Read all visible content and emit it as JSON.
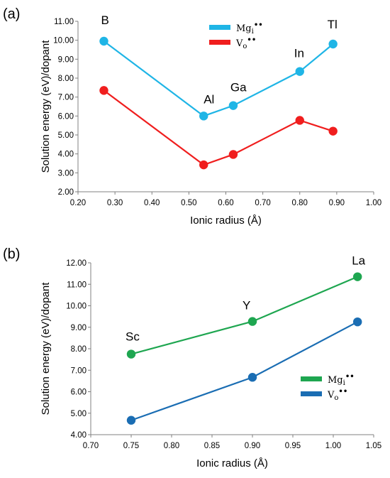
{
  "colors": {
    "mg_a": "#1FB5E6",
    "vo_a": "#F01E1E",
    "mg_b": "#1EA650",
    "vo_b": "#1A6DB3",
    "axis": "#808080"
  },
  "chart_data": [
    {
      "type": "line",
      "panel_label": "(a)",
      "xlabel": "Ionic radius (Å)",
      "ylabel": "Solution energy (eV)/dopant",
      "xlim": [
        0.2,
        1.0
      ],
      "ylim": [
        2.0,
        11.0
      ],
      "x_ticks": [
        "0.20",
        "0.30",
        "0.40",
        "0.50",
        "0.60",
        "0.70",
        "0.80",
        "0.90",
        "1.00"
      ],
      "y_ticks": [
        "2.00",
        "3.00",
        "4.00",
        "5.00",
        "6.00",
        "7.00",
        "8.00",
        "9.00",
        "10.00",
        "11.00"
      ],
      "legend_position": "top-right",
      "legend": [
        {
          "base": "Mg",
          "sub": "i",
          "sup": "••"
        },
        {
          "base": "V",
          "sub": "o",
          "sup": "••"
        }
      ],
      "point_labels": [
        {
          "text": "B",
          "x": 0.27,
          "y": 9.95
        },
        {
          "text": "Al",
          "x": 0.54,
          "y": 6.0
        },
        {
          "text": "Ga",
          "x": 0.62,
          "y": 6.55
        },
        {
          "text": "In",
          "x": 0.8,
          "y": 8.35
        },
        {
          "text": "Tl",
          "x": 0.89,
          "y": 9.8
        }
      ],
      "series": [
        {
          "x": [
            0.27,
            0.54,
            0.62,
            0.8,
            0.89
          ],
          "values": [
            9.95,
            6.0,
            6.55,
            8.35,
            9.8
          ]
        },
        {
          "x": [
            0.27,
            0.54,
            0.62,
            0.8,
            0.89
          ],
          "values": [
            7.35,
            3.42,
            3.97,
            5.77,
            5.2
          ]
        }
      ]
    },
    {
      "type": "line",
      "panel_label": "(b)",
      "xlabel": "Ionic radius (Å)",
      "ylabel": "Solution energy (eV)/dopant",
      "xlim": [
        0.7,
        1.05
      ],
      "ylim": [
        4.0,
        12.0
      ],
      "x_ticks": [
        "0.70",
        "0.75",
        "0.80",
        "0.85",
        "0.90",
        "0.95",
        "1.00",
        "1.05"
      ],
      "y_ticks": [
        "4.00",
        "5.00",
        "6.00",
        "7.00",
        "8.00",
        "9.00",
        "10.00",
        "11.00",
        "12.00"
      ],
      "legend_position": "bottom-right",
      "legend": [
        {
          "base": "Mg",
          "sub": "i",
          "sup": "••"
        },
        {
          "base": "V",
          "sub": "o",
          "sup": "••"
        }
      ],
      "point_labels": [
        {
          "text": "Sc",
          "x": 0.75,
          "y": 7.75
        },
        {
          "text": "Y",
          "x": 0.9,
          "y": 9.27
        },
        {
          "text": "La",
          "x": 1.03,
          "y": 11.35
        }
      ],
      "series": [
        {
          "x": [
            0.75,
            0.9,
            1.03
          ],
          "values": [
            7.75,
            9.27,
            11.35
          ]
        },
        {
          "x": [
            0.75,
            0.9,
            1.03
          ],
          "values": [
            4.67,
            6.67,
            9.25
          ]
        }
      ]
    }
  ]
}
